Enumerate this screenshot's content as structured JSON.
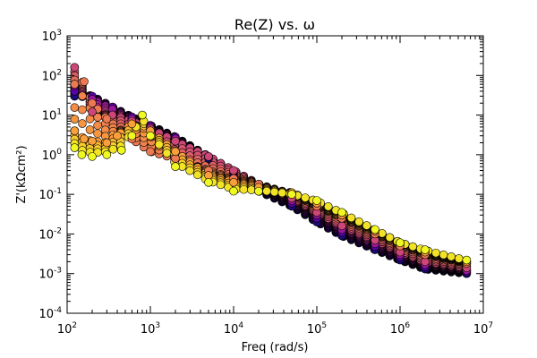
{
  "chart_data": {
    "type": "scatter",
    "title": "Re(Z) vs. ω",
    "xlabel": "Freq (rad/s)",
    "ylabel": "Z'(kΩcm²)",
    "xscale": "log",
    "yscale": "log",
    "xlim": [
      100,
      10000000
    ],
    "ylim": [
      0.0001,
      1000
    ],
    "x_ticks": [
      {
        "value": 100,
        "base": "10",
        "exp": "2"
      },
      {
        "value": 1000,
        "base": "10",
        "exp": "3"
      },
      {
        "value": 10000,
        "base": "10",
        "exp": "4"
      },
      {
        "value": 100000,
        "base": "10",
        "exp": "5"
      },
      {
        "value": 1000000,
        "base": "10",
        "exp": "6"
      },
      {
        "value": 10000000,
        "base": "10",
        "exp": "7"
      }
    ],
    "y_ticks": [
      {
        "value": 0.0001,
        "base": "10",
        "exp": "-4"
      },
      {
        "value": 0.001,
        "base": "10",
        "exp": "-3"
      },
      {
        "value": 0.01,
        "base": "10",
        "exp": "-2"
      },
      {
        "value": 0.1,
        "base": "10",
        "exp": "-1"
      },
      {
        "value": 1,
        "base": "10",
        "exp": "0"
      },
      {
        "value": 10,
        "base": "10",
        "exp": "1"
      },
      {
        "value": 100,
        "base": "10",
        "exp": "2"
      },
      {
        "value": 1000,
        "base": "10",
        "exp": "3"
      }
    ],
    "grid": false,
    "legend": "none",
    "colormap": "plasma",
    "colormap_stops": [
      "#0d0887",
      "#6a00a8",
      "#b12a90",
      "#e16462",
      "#fca636",
      "#f0f921"
    ],
    "marker_edge_color": "#000000",
    "series": [
      {
        "color": "#1a0a7a",
        "x": [
          123,
          200,
          350,
          600,
          1000,
          2000,
          5000,
          10000,
          20000,
          50000,
          100000,
          200000,
          500000,
          1000000,
          2000000,
          6300000
        ],
        "y": [
          30,
          28,
          15,
          8,
          5,
          2.5,
          0.8,
          0.3,
          0.12,
          0.05,
          0.02,
          0.009,
          0.004,
          0.0022,
          0.0013,
          0.001
        ]
      },
      {
        "color": "#5a02a3",
        "x": [
          123,
          200,
          350,
          600,
          1000,
          2000,
          5000,
          10000,
          20000,
          50000,
          100000,
          200000,
          500000,
          1000000,
          2000000,
          6300000
        ],
        "y": [
          40,
          30,
          16,
          9,
          5.5,
          2.8,
          0.9,
          0.35,
          0.14,
          0.06,
          0.025,
          0.011,
          0.0048,
          0.0026,
          0.0015,
          0.0011
        ]
      },
      {
        "color": "#9c179e",
        "x": [
          123,
          200,
          350,
          600,
          1000,
          2000,
          5000,
          10000,
          20000,
          50000,
          100000,
          200000,
          500000,
          1000000,
          2000000,
          6300000
        ],
        "y": [
          55,
          25,
          14,
          8,
          5,
          2.5,
          0.9,
          0.38,
          0.16,
          0.07,
          0.03,
          0.013,
          0.0057,
          0.003,
          0.0017,
          0.0012
        ]
      },
      {
        "color": "#cc4778",
        "x": [
          123,
          200,
          350,
          600,
          1000,
          2000,
          5000,
          10000,
          20000,
          50000,
          100000,
          200000,
          500000,
          1000000,
          2000000,
          6300000
        ],
        "y": [
          160,
          12,
          10,
          7,
          4.5,
          2.2,
          0.9,
          0.4,
          0.18,
          0.08,
          0.035,
          0.016,
          0.007,
          0.0035,
          0.002,
          0.0014
        ]
      },
      {
        "color": "#ed7953",
        "x": [
          123,
          160,
          200,
          300,
          600,
          1000,
          2000,
          5000,
          10000,
          20000,
          50000,
          100000,
          200000,
          500000,
          1000000,
          2000000,
          6300000
        ],
        "y": [
          60,
          70,
          20,
          8,
          2.5,
          1.2,
          0.8,
          0.4,
          0.25,
          0.18,
          0.1,
          0.05,
          0.025,
          0.01,
          0.005,
          0.003,
          0.0018
        ]
      },
      {
        "color": "#fb9f3a",
        "x": [
          123,
          160,
          200,
          300,
          400,
          600,
          1000,
          2000,
          5000,
          10000,
          20000,
          50000,
          100000,
          200000,
          500000,
          1000000,
          2000000,
          6300000
        ],
        "y": [
          4,
          2.5,
          2.2,
          2,
          3,
          6,
          4,
          1.2,
          0.3,
          0.2,
          0.15,
          0.11,
          0.06,
          0.03,
          0.012,
          0.006,
          0.0035,
          0.002
        ]
      },
      {
        "color": "#f0f921",
        "x": [
          123,
          150,
          200,
          300,
          450,
          600,
          800,
          1000,
          2000,
          5000,
          10000,
          20000,
          50000,
          100000,
          200000,
          500000,
          1000000,
          2000000,
          6300000
        ],
        "y": [
          1.5,
          1,
          0.9,
          1,
          1.3,
          3,
          10,
          3,
          0.5,
          0.2,
          0.12,
          0.12,
          0.1,
          0.07,
          0.035,
          0.013,
          0.006,
          0.004,
          0.0022
        ]
      }
    ]
  }
}
